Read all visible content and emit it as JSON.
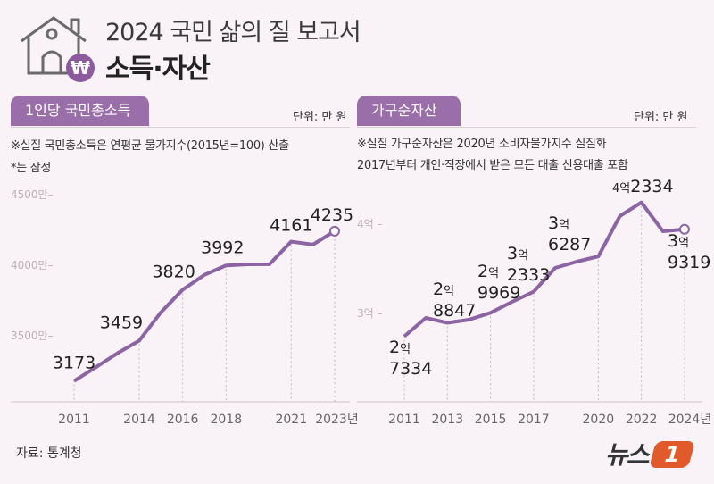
{
  "header": {
    "title": "2024 국민 삶의 질 보고서",
    "subtitle": "소득·자산",
    "icon": "house-with-won-coin-icon"
  },
  "source": "자료: 통계청",
  "logo": {
    "text": "뉴스1",
    "colors": {
      "text": "#333333",
      "badge": "#e05a2b"
    }
  },
  "colors": {
    "line": "#8c64a3",
    "badge": "#9a6ea8",
    "background": "#f9f2f7"
  },
  "chart_data": [
    {
      "type": "line",
      "title": "1인당 국민총소득",
      "unit": "단위: 만 원",
      "notes": [
        "※실질 국민총소득은 연평균 물가지수(2015년=100) 산출",
        "*는 잠정"
      ],
      "x": [
        2011,
        2012,
        2013,
        2014,
        2015,
        2016,
        2017,
        2018,
        2019,
        2020,
        2021,
        2022,
        2023
      ],
      "values": [
        3173,
        3270,
        3370,
        3459,
        3660,
        3820,
        3925,
        3992,
        4000,
        4001,
        4161,
        4140,
        4235
      ],
      "data_labels": [
        {
          "year": 2011,
          "text": "3173"
        },
        {
          "year": 2014,
          "text": "3459"
        },
        {
          "year": 2016,
          "text": "3820"
        },
        {
          "year": 2018,
          "text": "3992"
        },
        {
          "year": 2021,
          "text": "4161"
        },
        {
          "year": 2023,
          "text": "4235"
        }
      ],
      "x_ticks": [
        {
          "year": 2011,
          "label": "2011"
        },
        {
          "year": 2014,
          "label": "2014"
        },
        {
          "year": 2016,
          "label": "2016"
        },
        {
          "year": 2018,
          "label": "2018"
        },
        {
          "year": 2021,
          "label": "2021"
        },
        {
          "year": 2023,
          "label": "2023년*"
        }
      ],
      "y_ticks": [
        {
          "value": 3500,
          "label": "3500만"
        },
        {
          "value": 4000,
          "label": "4000만"
        },
        {
          "value": 4500,
          "label": "4500만"
        }
      ],
      "ylim": [
        2900,
        4550
      ],
      "grid": false
    },
    {
      "type": "line",
      "title": "가구순자산",
      "unit": "단위: 만 원",
      "notes": [
        "※실질 가구순자산은 2020년 소비자물가지수 실질화",
        "2017년부터 개인·직장에서 받은 모든 대출 신용대출 포함"
      ],
      "x": [
        2011,
        2012,
        2013,
        2014,
        2015,
        2016,
        2017,
        2018,
        2019,
        2020,
        2021,
        2022,
        2023,
        2024
      ],
      "values": [
        27334,
        29400,
        28847,
        29200,
        29969,
        31200,
        32333,
        35000,
        35700,
        36287,
        40800,
        42334,
        39100,
        39319
      ],
      "data_labels": [
        {
          "year": 2011,
          "top": "2억",
          "bottom": "7334"
        },
        {
          "year": 2013,
          "top": "2억",
          "bottom": "8847"
        },
        {
          "year": 2015,
          "top": "2억",
          "bottom": "9969"
        },
        {
          "year": 2017,
          "top": "3억",
          "bottom": "2333"
        },
        {
          "year": 2020,
          "top": "3억",
          "bottom": "6287"
        },
        {
          "year": 2022,
          "top": "4억",
          "bottom": "2334"
        },
        {
          "year": 2024,
          "top": "3억",
          "bottom": "9319"
        }
      ],
      "x_ticks": [
        {
          "year": 2011,
          "label": "2011"
        },
        {
          "year": 2013,
          "label": "2013"
        },
        {
          "year": 2015,
          "label": "2015"
        },
        {
          "year": 2017,
          "label": "2017"
        },
        {
          "year": 2020,
          "label": "2020"
        },
        {
          "year": 2022,
          "label": "2022"
        },
        {
          "year": 2024,
          "label": "2024년"
        }
      ],
      "y_ticks": [
        {
          "value": 30000,
          "label": "3억"
        },
        {
          "value": 40000,
          "label": "4억"
        }
      ],
      "ylim": [
        20000,
        45000
      ],
      "grid": false
    }
  ]
}
